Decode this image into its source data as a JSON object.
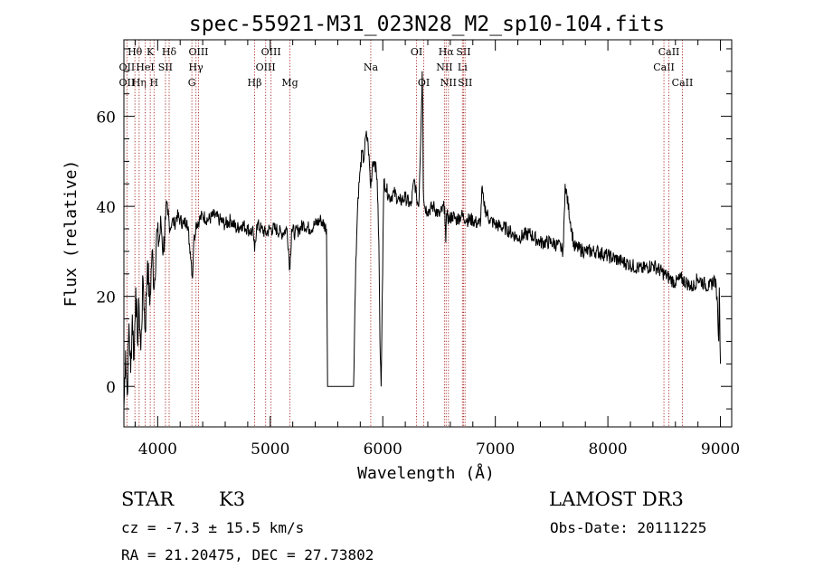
{
  "chart_data": {
    "type": "line",
    "title": "spec-55921-M31_023N28_M2_sp10-104.fits",
    "xlabel": "Wavelength (Å)",
    "ylabel": "Flux (relative)",
    "xlim": [
      3700,
      9100
    ],
    "ylim": [
      -9,
      77
    ],
    "x_ticks": [
      4000,
      5000,
      6000,
      7000,
      8000,
      9000
    ],
    "x_tick_labels": [
      "4000",
      "5000",
      "6000",
      "7000",
      "8000",
      "9000"
    ],
    "y_ticks": [
      0,
      20,
      40,
      60
    ],
    "y_tick_labels": [
      "0",
      "20",
      "40",
      "60"
    ],
    "spectrum": {
      "name": "flux",
      "x": [
        3700,
        3715,
        3730,
        3745,
        3760,
        3775,
        3790,
        3805,
        3820,
        3835,
        3850,
        3870,
        3890,
        3910,
        3930,
        3950,
        3970,
        3990,
        4010,
        4030,
        4050,
        4070,
        4090,
        4110,
        4130,
        4150,
        4170,
        4200,
        4230,
        4260,
        4290,
        4300,
        4310,
        4320,
        4340,
        4370,
        4400,
        4450,
        4500,
        4550,
        4600,
        4650,
        4700,
        4750,
        4800,
        4850,
        4861,
        4880,
        4920,
        4960,
        5000,
        5050,
        5100,
        5150,
        5175,
        5190,
        5220,
        5260,
        5300,
        5350,
        5400,
        5450,
        5500,
        5510,
        5530,
        5560,
        5600,
        5650,
        5700,
        5740,
        5760,
        5780,
        5800,
        5815,
        5830,
        5850,
        5870,
        5893,
        5910,
        5930,
        5950,
        5965,
        5975,
        5985,
        5995,
        6010,
        6030,
        6060,
        6100,
        6150,
        6200,
        6250,
        6280,
        6300,
        6320,
        6340,
        6350,
        6355,
        6360,
        6370,
        6400,
        6450,
        6500,
        6550,
        6560,
        6563,
        6570,
        6590,
        6620,
        6650,
        6700,
        6750,
        6800,
        6850,
        6870,
        6880,
        6900,
        6950,
        7000,
        7100,
        7200,
        7300,
        7400,
        7500,
        7580,
        7595,
        7605,
        7620,
        7700,
        7800,
        7900,
        8000,
        8100,
        8200,
        8300,
        8400,
        8500,
        8550,
        8600,
        8650,
        8700,
        8750,
        8800,
        8850,
        8900,
        8950,
        8970,
        8985,
        8990,
        9000
      ],
      "y": [
        -5,
        8,
        -2,
        14,
        3,
        16,
        6,
        22,
        10,
        18,
        8,
        24,
        12,
        28,
        18,
        30,
        22,
        34,
        32,
        36,
        30,
        37,
        38,
        35,
        37,
        36,
        38,
        37,
        36,
        37,
        30,
        27,
        24,
        32,
        36,
        37,
        38,
        37,
        38,
        37,
        36,
        37,
        35,
        36,
        35,
        34,
        30,
        36,
        35,
        34,
        35,
        35,
        34,
        35,
        26,
        35,
        34,
        35,
        36,
        35,
        36,
        37,
        35,
        0,
        0,
        0,
        0,
        0,
        0,
        0,
        28,
        42,
        48,
        52,
        50,
        56,
        54,
        44,
        50,
        50,
        46,
        32,
        10,
        0,
        20,
        46,
        44,
        42,
        43,
        41,
        42,
        40,
        46,
        42,
        40,
        58,
        70,
        62,
        44,
        40,
        39,
        40,
        38,
        40,
        32,
        36,
        38,
        37,
        38,
        37,
        38,
        37,
        37,
        36,
        37,
        44,
        40,
        37,
        36,
        35,
        33,
        34,
        32,
        32,
        31,
        30,
        31,
        45,
        31,
        30,
        30,
        29,
        28,
        27,
        26,
        27,
        25,
        24,
        23,
        24,
        23,
        22,
        24,
        23,
        22,
        24,
        20,
        10,
        22,
        5
      ]
    },
    "line_markers": [
      {
        "label": "Hθ",
        "x": 3798,
        "row": 0
      },
      {
        "label": "OII",
        "x": 3727,
        "row": 1
      },
      {
        "label": "OII",
        "x": 3727,
        "row": 2
      },
      {
        "label": "Hη",
        "x": 3835,
        "row": 2
      },
      {
        "label": "HeI",
        "x": 3889,
        "row": 1
      },
      {
        "label": "K",
        "x": 3934,
        "row": 0
      },
      {
        "label": "H",
        "x": 3968,
        "row": 2
      },
      {
        "label": "SII",
        "x": 4069,
        "row": 1
      },
      {
        "label": "Hδ",
        "x": 4102,
        "row": 0
      },
      {
        "label": "G",
        "x": 4304,
        "row": 2
      },
      {
        "label": "Hγ",
        "x": 4340,
        "row": 1
      },
      {
        "label": "OIII",
        "x": 4363,
        "row": 0
      },
      {
        "label": "Hβ",
        "x": 4861,
        "row": 2
      },
      {
        "label": "OIII",
        "x": 4959,
        "row": 1
      },
      {
        "label": "OIII",
        "x": 5007,
        "row": 0
      },
      {
        "label": "Mg",
        "x": 5175,
        "row": 2
      },
      {
        "label": "Na",
        "x": 5893,
        "row": 1
      },
      {
        "label": "OI",
        "x": 6300,
        "row": 0
      },
      {
        "label": "OI",
        "x": 6364,
        "row": 2
      },
      {
        "label": "NII",
        "x": 6548,
        "row": 1
      },
      {
        "label": "Hα",
        "x": 6563,
        "row": 0
      },
      {
        "label": "NII",
        "x": 6583,
        "row": 2
      },
      {
        "label": "Li",
        "x": 6708,
        "row": 1
      },
      {
        "label": "SII",
        "x": 6717,
        "row": 0
      },
      {
        "label": "SII",
        "x": 6731,
        "row": 2
      },
      {
        "label": "CaII",
        "x": 8498,
        "row": 1
      },
      {
        "label": "CaII",
        "x": 8542,
        "row": 0
      },
      {
        "label": "CaII",
        "x": 8662,
        "row": 2
      }
    ]
  },
  "info": {
    "class_label": "STAR",
    "subclass_label": "K3",
    "survey_label": "LAMOST DR3",
    "cz_line": "cz = -7.3 ± 15.5 km/s",
    "obs_date_line": "Obs-Date: 20111225",
    "coords_line": "RA =  21.20475, DEC =  27.73802"
  }
}
